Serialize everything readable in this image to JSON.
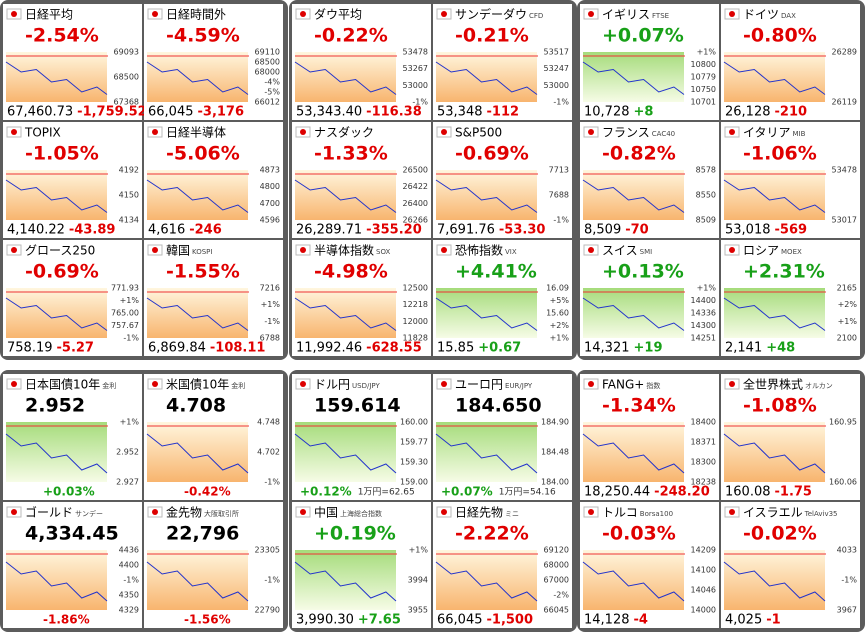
{
  "sections": [
    {
      "tiles": [
        {
          "name": "日経平均",
          "pct": "-2.54%",
          "price": "67,460.73",
          "change": "-1,759.52",
          "axis": [
            "69093",
            "68500",
            "67368"
          ]
        },
        {
          "name": "日経時間外",
          "pct": "-4.59%",
          "price": "66,045",
          "change": "-3,176",
          "axis": [
            "69110",
            "68500",
            "68000",
            "-4%",
            "-5%",
            "66012"
          ]
        },
        {
          "name": "TOPIX",
          "pct": "-1.05%",
          "price": "4,140.22",
          "change": "-43.89",
          "axis": [
            "4192",
            "4150",
            "4134"
          ]
        },
        {
          "name": "日経半導体",
          "pct": "-5.06%",
          "price": "4,616",
          "change": "-246",
          "axis": [
            "4873",
            "4800",
            "4700",
            "4596"
          ]
        },
        {
          "name": "グロース250",
          "pct": "-0.69%",
          "price": "758.19",
          "change": "-5.27",
          "axis": [
            "771.93",
            "+1%",
            "765.00",
            "757.67",
            "-1%"
          ]
        },
        {
          "name": "韓国",
          "sub": "KOSPI",
          "pct": "-1.55%",
          "price": "6,869.84",
          "change": "-108.11",
          "axis": [
            "7216",
            "+1%",
            "-1%",
            "6788"
          ]
        }
      ]
    },
    {
      "tiles": [
        {
          "name": "ダウ平均",
          "pct": "-0.22%",
          "price": "53,343.40",
          "change": "-116.38",
          "axis": [
            "53478",
            "53267",
            "53000",
            "-1%"
          ]
        },
        {
          "name": "サンデーダウ",
          "sub": "CFD",
          "pct": "-0.21%",
          "price": "53,348",
          "change": "-112",
          "axis": [
            "53517",
            "53247",
            "53000",
            "-1%"
          ]
        },
        {
          "name": "ナスダック",
          "pct": "-1.33%",
          "price": "26,289.71",
          "change": "-355.20",
          "axis": [
            "26500",
            "26422",
            "26400",
            "26266"
          ]
        },
        {
          "name": "S&P500",
          "pct": "-0.69%",
          "price": "7,691.76",
          "change": "-53.30",
          "axis": [
            "7713",
            "7688",
            "-1%"
          ]
        },
        {
          "name": "半導体指数",
          "sub": "SOX",
          "pct": "-4.98%",
          "price": "11,992.46",
          "change": "-628.55",
          "axis": [
            "12500",
            "12218",
            "12000",
            "11828"
          ]
        },
        {
          "name": "恐怖指数",
          "sub": "VIX",
          "pct": "+4.41%",
          "price": "15.85",
          "change": "+0.67",
          "axis": [
            "16.09",
            "+5%",
            "15.60",
            "+2%",
            "+1%"
          ]
        }
      ]
    },
    {
      "tiles": [
        {
          "name": "イギリス",
          "sub": "FTSE",
          "pct": "+0.07%",
          "price": "10,728",
          "change": "+8",
          "axis": [
            "+1%",
            "10800",
            "10779",
            "10750",
            "10701"
          ]
        },
        {
          "name": "ドイツ",
          "sub": "DAX",
          "pct": "-0.80%",
          "price": "26,128",
          "change": "-210",
          "axis": [
            "26289",
            "26119"
          ]
        },
        {
          "name": "フランス",
          "sub": "CAC40",
          "pct": "-0.82%",
          "price": "8,509",
          "change": "-70",
          "axis": [
            "8578",
            "8550",
            "8509"
          ]
        },
        {
          "name": "イタリア",
          "sub": "MIB",
          "pct": "-1.06%",
          "price": "53,018",
          "change": "-569",
          "axis": [
            "53478",
            "53017"
          ]
        },
        {
          "name": "スイス",
          "sub": "SMI",
          "pct": "+0.13%",
          "price": "14,321",
          "change": "+19",
          "axis": [
            "+1%",
            "14400",
            "14336",
            "14300",
            "14251"
          ]
        },
        {
          "name": "ロシア",
          "sub": "MOEX",
          "pct": "+2.31%",
          "price": "2,141",
          "change": "+48",
          "axis": [
            "2165",
            "+2%",
            "+1%",
            "2100"
          ]
        }
      ]
    },
    {
      "tiles": [
        {
          "name": "日本国債10年",
          "sub": "金利",
          "price": "2.952",
          "pct": "+0.03%",
          "axis": [
            "+1%",
            "2.952",
            "2.927"
          ]
        },
        {
          "name": "米国債10年",
          "sub": "金利",
          "price": "4.708",
          "pct": "-0.42%",
          "axis": [
            "4.748",
            "4.702",
            "-1%"
          ]
        },
        {
          "name": "ゴールド",
          "sub": "サンデー",
          "price": "4,334.45",
          "pct": "-1.86%",
          "axis": [
            "4436",
            "4400",
            "-1%",
            "4350",
            "4329"
          ]
        },
        {
          "name": "金先物",
          "sub": "大阪取引所",
          "price": "22,796",
          "pct": "-1.56%",
          "axis": [
            "23305",
            "-1%",
            "22790"
          ]
        }
      ]
    },
    {
      "tiles": [
        {
          "name": "ドル円",
          "sub": "USD/JPY",
          "price": "159.614",
          "pct": "+0.12%",
          "note": "1万円=62.65",
          "axis": [
            "160.00",
            "159.77",
            "159.30",
            "159.00"
          ]
        },
        {
          "name": "ユーロ円",
          "sub": "EUR/JPY",
          "price": "184.650",
          "pct": "+0.07%",
          "note": "1万円=54.16",
          "axis": [
            "184.90",
            "184.48",
            "184.00"
          ]
        },
        {
          "name": "中国",
          "sub": "上海総合指数",
          "pct": "+0.19%",
          "price": "3,990.30",
          "change": "+7.65",
          "axis": [
            "+1%",
            "3994",
            "3955"
          ]
        },
        {
          "name": "日経先物",
          "sub": "ミニ",
          "pct": "-2.22%",
          "price": "66,045",
          "change": "-1,500",
          "axis": [
            "69120",
            "68000",
            "67000",
            "-2%",
            "66045"
          ]
        }
      ]
    },
    {
      "tiles": [
        {
          "name": "FANG+",
          "sub": "指数",
          "pct": "-1.34%",
          "price": "18,250.44",
          "change": "-248.20",
          "axis": [
            "18400",
            "18371",
            "18300",
            "18238"
          ]
        },
        {
          "name": "全世界株式",
          "sub": "オルカン",
          "pct": "-1.08%",
          "price": "160.08",
          "change": "-1.75",
          "axis": [
            "160.95",
            "160.06"
          ]
        },
        {
          "name": "トルコ",
          "sub": "Borsa100",
          "pct": "-0.03%",
          "price": "14,128",
          "change": "-4",
          "axis": [
            "14209",
            "14100",
            "14046",
            "14000"
          ]
        },
        {
          "name": "イスラエル",
          "sub": "TelAviv35",
          "pct": "-0.02%",
          "price": "4,025",
          "change": "-1",
          "axis": [
            "4033",
            "-1%",
            "3967"
          ]
        }
      ]
    }
  ]
}
